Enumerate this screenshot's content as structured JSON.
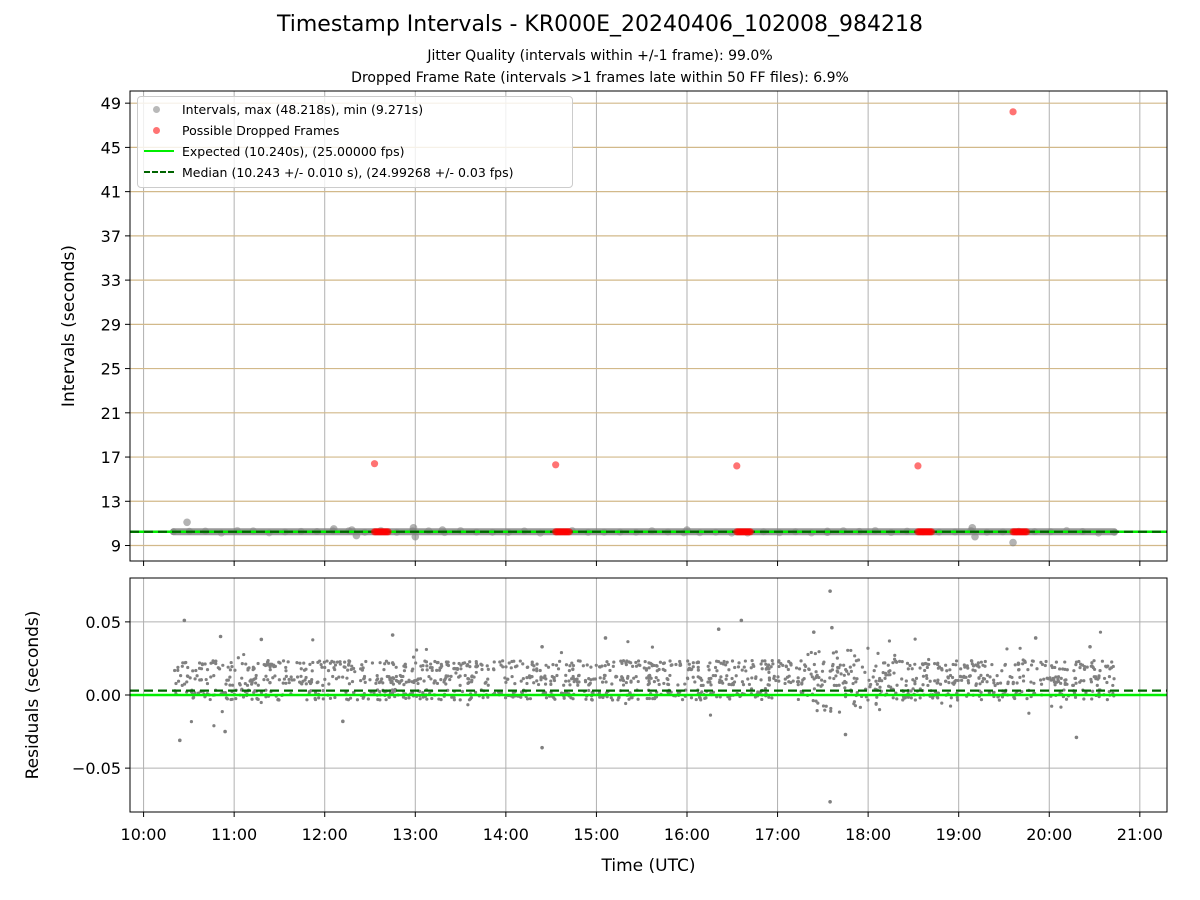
{
  "figure": {
    "title": "Timestamp Intervals - KR000E_20240406_102008_984218",
    "subtitle_1": "Jitter Quality (intervals within +/-1 frame): 99.0%",
    "subtitle_2": "Dropped Frame Rate (intervals >1 frames late within 50 FF files): 6.9%"
  },
  "colors": {
    "intervals": "#808080",
    "dropped": "#ff0000",
    "expected": "#00ee00",
    "median": "#006400",
    "hgrid": "#d2b98a",
    "vgrid": "#b0b0b0"
  },
  "legend": {
    "intervals": "Intervals, max (48.218s), min (9.271s)",
    "dropped": "Possible Dropped Frames",
    "expected": "Expected (10.240s), (25.00000 fps)",
    "median": "Median (10.243 +/- 0.010 s), (24.99268 +/- 0.03 fps)"
  },
  "chart_data": [
    {
      "type": "scatter",
      "title": "Timestamp Intervals - KR000E_20240406_102008_984218",
      "xlabel": "",
      "ylabel": "Intervals (seconds)",
      "xlim": [
        9.85,
        21.3
      ],
      "ylim": [
        7.6,
        50.1
      ],
      "yticks": [
        9,
        13,
        17,
        21,
        25,
        29,
        33,
        37,
        41,
        45,
        49
      ],
      "xticks": [
        10,
        11,
        12,
        13,
        14,
        15,
        16,
        17,
        18,
        19,
        20,
        21
      ],
      "expected_interval": 10.24,
      "median_interval": 10.243,
      "interval_range": [
        10.33,
        20.72
      ],
      "interval_outliers": [
        {
          "x": 10.48,
          "y": 11.1
        },
        {
          "x": 12.1,
          "y": 10.5
        },
        {
          "x": 12.3,
          "y": 10.4
        },
        {
          "x": 12.35,
          "y": 9.9
        },
        {
          "x": 12.98,
          "y": 10.6
        },
        {
          "x": 13.0,
          "y": 9.8
        },
        {
          "x": 13.3,
          "y": 10.4
        },
        {
          "x": 16.0,
          "y": 10.4
        },
        {
          "x": 17.55,
          "y": 10.2
        },
        {
          "x": 19.15,
          "y": 10.6
        },
        {
          "x": 19.18,
          "y": 9.8
        },
        {
          "x": 19.6,
          "y": 9.271
        }
      ],
      "dropped_frames": [
        {
          "x": 12.55,
          "y": 16.4
        },
        {
          "x": 14.55,
          "y": 16.3
        },
        {
          "x": 16.55,
          "y": 16.2
        },
        {
          "x": 18.55,
          "y": 16.2
        },
        {
          "x": 19.6,
          "y": 48.218
        }
      ],
      "dropped_clusters": [
        {
          "from": 12.55,
          "to": 12.7,
          "y": 10.24
        },
        {
          "from": 14.55,
          "to": 14.7,
          "y": 10.24
        },
        {
          "from": 16.55,
          "to": 16.7,
          "y": 10.24
        },
        {
          "from": 18.55,
          "to": 18.7,
          "y": 10.24
        },
        {
          "from": 19.6,
          "to": 19.75,
          "y": 10.24
        }
      ]
    },
    {
      "type": "scatter",
      "xlabel": "Time (UTC)",
      "ylabel": "Residuals (seconds)",
      "xlim": [
        9.85,
        21.3
      ],
      "ylim": [
        -0.08,
        0.08
      ],
      "yticks": [
        -0.05,
        0.0,
        0.05
      ],
      "ytick_labels": [
        "−0.05",
        "0.00",
        "0.05"
      ],
      "xticks": [
        10,
        11,
        12,
        13,
        14,
        15,
        16,
        17,
        18,
        19,
        20,
        21
      ],
      "xtick_labels": [
        "10:00",
        "11:00",
        "12:00",
        "13:00",
        "14:00",
        "15:00",
        "16:00",
        "17:00",
        "18:00",
        "19:00",
        "20:00",
        "21:00"
      ],
      "expected_residual": 0.0,
      "median_residual": 0.003,
      "residual_bands": [
        0.0,
        0.01,
        0.02
      ],
      "residual_outliers": [
        {
          "x": 10.45,
          "y": 0.051
        },
        {
          "x": 10.4,
          "y": -0.031
        },
        {
          "x": 10.85,
          "y": 0.04
        },
        {
          "x": 10.9,
          "y": -0.025
        },
        {
          "x": 11.3,
          "y": 0.038
        },
        {
          "x": 12.2,
          "y": -0.018
        },
        {
          "x": 12.75,
          "y": 0.041
        },
        {
          "x": 14.4,
          "y": -0.036
        },
        {
          "x": 14.4,
          "y": 0.033
        },
        {
          "x": 15.1,
          "y": 0.039
        },
        {
          "x": 16.35,
          "y": 0.045
        },
        {
          "x": 16.6,
          "y": 0.051
        },
        {
          "x": 17.4,
          "y": 0.043
        },
        {
          "x": 17.58,
          "y": 0.071
        },
        {
          "x": 17.58,
          "y": -0.073
        },
        {
          "x": 17.6,
          "y": 0.046
        },
        {
          "x": 17.75,
          "y": -0.027
        },
        {
          "x": 19.85,
          "y": 0.039
        },
        {
          "x": 20.3,
          "y": -0.029
        },
        {
          "x": 20.45,
          "y": 0.033
        }
      ]
    }
  ]
}
